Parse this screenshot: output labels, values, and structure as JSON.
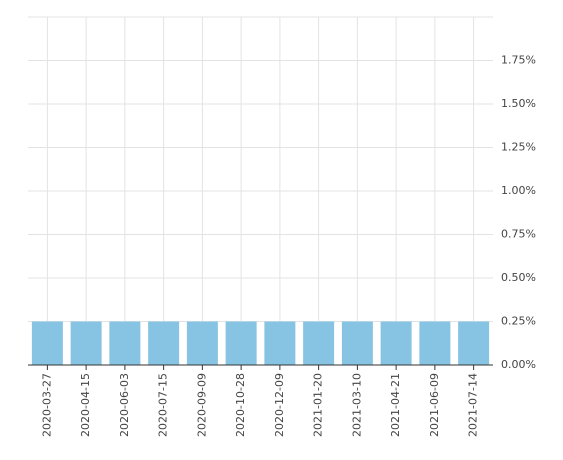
{
  "chart_data": {
    "type": "bar",
    "categories": [
      "2020-03-27",
      "2020-04-15",
      "2020-06-03",
      "2020-07-15",
      "2020-09-09",
      "2020-10-28",
      "2020-12-09",
      "2021-01-20",
      "2021-03-10",
      "2021-04-21",
      "2021-06-09",
      "2021-07-14"
    ],
    "values": [
      0.25,
      0.25,
      0.25,
      0.25,
      0.25,
      0.25,
      0.25,
      0.25,
      0.25,
      0.25,
      0.25,
      0.25
    ],
    "color": "#87c4e4",
    "ylim": [
      0,
      2.0
    ],
    "yticks": [
      {
        "value": 0,
        "label": "0.00%"
      },
      {
        "value": 0.25,
        "label": "0.25%"
      },
      {
        "value": 0.5,
        "label": "0.50%"
      },
      {
        "value": 0.75,
        "label": "0.75%"
      },
      {
        "value": 1.0,
        "label": "1.00%"
      },
      {
        "value": 1.25,
        "label": "1.25%"
      },
      {
        "value": 1.5,
        "label": "1.50%"
      },
      {
        "value": 1.75,
        "label": "1.75%"
      }
    ],
    "grid": true
  }
}
